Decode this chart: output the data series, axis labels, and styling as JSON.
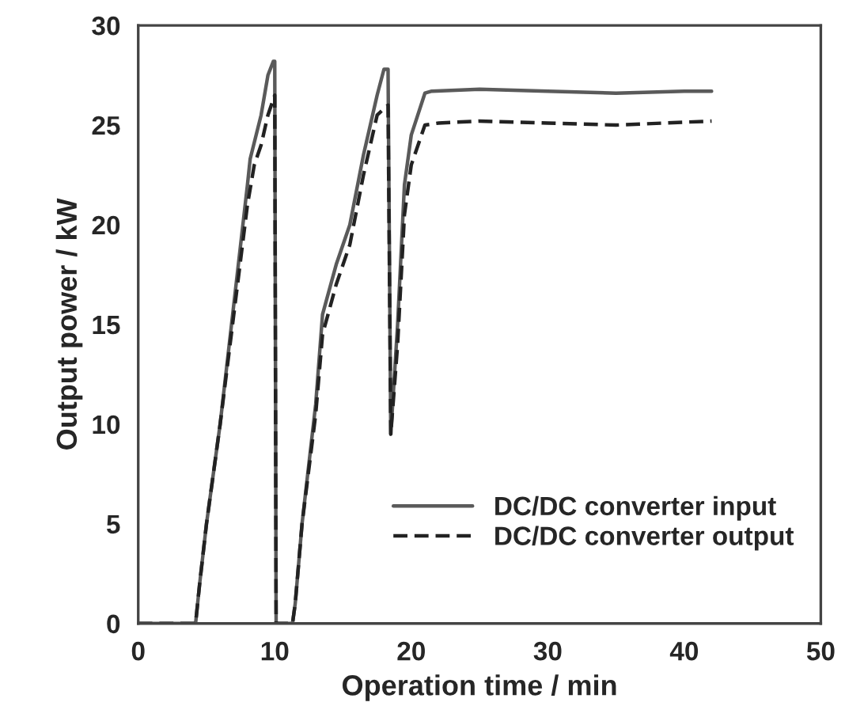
{
  "chart_data": {
    "type": "line",
    "xlabel": "Operation time / min",
    "ylabel": "Output power / kW",
    "xlim": [
      0,
      50
    ],
    "ylim": [
      0,
      30
    ],
    "xticks": [
      0,
      10,
      20,
      30,
      40,
      50
    ],
    "yticks": [
      0,
      5,
      10,
      15,
      20,
      25,
      30
    ],
    "grid": false,
    "legend": "bottom right",
    "marker": "none",
    "series": [
      {
        "name": "DC/DC converter input",
        "color": "#5a5a5a",
        "line_style": "solid",
        "x": [
          0,
          4.2,
          4.5,
          5,
          6,
          7,
          8,
          8.2,
          9,
          9.5,
          9.9,
          10,
          10.1,
          11.3,
          11.5,
          12,
          13,
          13.5,
          14.5,
          15.5,
          16.5,
          17.5,
          18,
          18.3,
          18.5,
          19,
          19.5,
          20,
          21,
          21.5,
          25,
          30,
          35,
          40,
          42
        ],
        "values": [
          0,
          0,
          2,
          5,
          10,
          16,
          22,
          23.3,
          25.5,
          27.5,
          28.2,
          28.2,
          0,
          0,
          1,
          5,
          11,
          15.5,
          18,
          20,
          23.5,
          26.5,
          27.8,
          27.8,
          9.5,
          15,
          22,
          24.5,
          26.6,
          26.7,
          26.8,
          26.7,
          26.6,
          26.7,
          26.7
        ]
      },
      {
        "name": "DC/DC converter output",
        "color": "#222222",
        "line_style": "dashed",
        "x": [
          0,
          4.2,
          4.5,
          5,
          6,
          7,
          8,
          8.5,
          9,
          9.5,
          10,
          10.1,
          11.3,
          11.5,
          12,
          13,
          13.5,
          14.5,
          15.5,
          16.5,
          17.5,
          18.3,
          18.5,
          19,
          19.5,
          20,
          21,
          22,
          25,
          30,
          35,
          42
        ],
        "values": [
          0,
          0,
          2,
          5,
          10,
          15.5,
          21,
          23,
          24,
          25.5,
          26.5,
          0,
          0,
          1,
          5,
          10.5,
          14.5,
          17,
          19,
          22.5,
          25.5,
          26,
          9.5,
          14,
          20.5,
          23,
          25,
          25.1,
          25.2,
          25.1,
          25,
          25.2
        ]
      }
    ]
  }
}
